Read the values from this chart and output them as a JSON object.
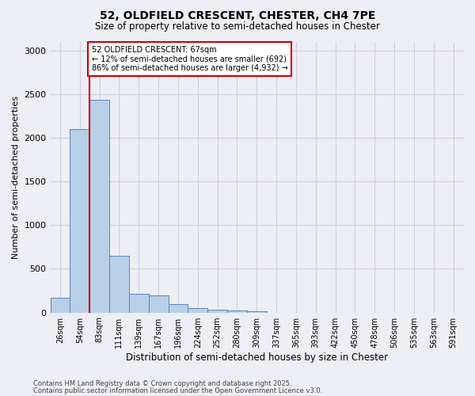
{
  "title_line1": "52, OLDFIELD CRESCENT, CHESTER, CH4 7PE",
  "title_line2": "Size of property relative to semi-detached houses in Chester",
  "xlabel": "Distribution of semi-detached houses by size in Chester",
  "ylabel": "Number of semi-detached properties",
  "categories": [
    "26sqm",
    "54sqm",
    "83sqm",
    "111sqm",
    "139sqm",
    "167sqm",
    "196sqm",
    "224sqm",
    "252sqm",
    "280sqm",
    "309sqm",
    "337sqm",
    "365sqm",
    "393sqm",
    "422sqm",
    "450sqm",
    "478sqm",
    "506sqm",
    "535sqm",
    "563sqm",
    "591sqm"
  ],
  "bar_heights": [
    170,
    2100,
    2430,
    650,
    210,
    200,
    100,
    50,
    30,
    20,
    10,
    0,
    0,
    0,
    0,
    0,
    0,
    0,
    0,
    0,
    0
  ],
  "bar_color": "#b8d0e8",
  "bar_edge_color": "#5588bb",
  "grid_color": "#d0d0e0",
  "background_color": "#eeeef5",
  "property_line_x": 1.5,
  "annotation_text": "52 OLDFIELD CRESCENT: 67sqm\n← 12% of semi-detached houses are smaller (692)\n86% of semi-detached houses are larger (4,932) →",
  "annotation_box_color": "#ffffff",
  "annotation_box_edge": "#cc0000",
  "property_line_color": "#cc0000",
  "footer_line1": "Contains HM Land Registry data © Crown copyright and database right 2025.",
  "footer_line2": "Contains public sector information licensed under the Open Government Licence v3.0.",
  "ylim": [
    0,
    3100
  ],
  "yticks": [
    0,
    500,
    1000,
    1500,
    2000,
    2500,
    3000
  ]
}
